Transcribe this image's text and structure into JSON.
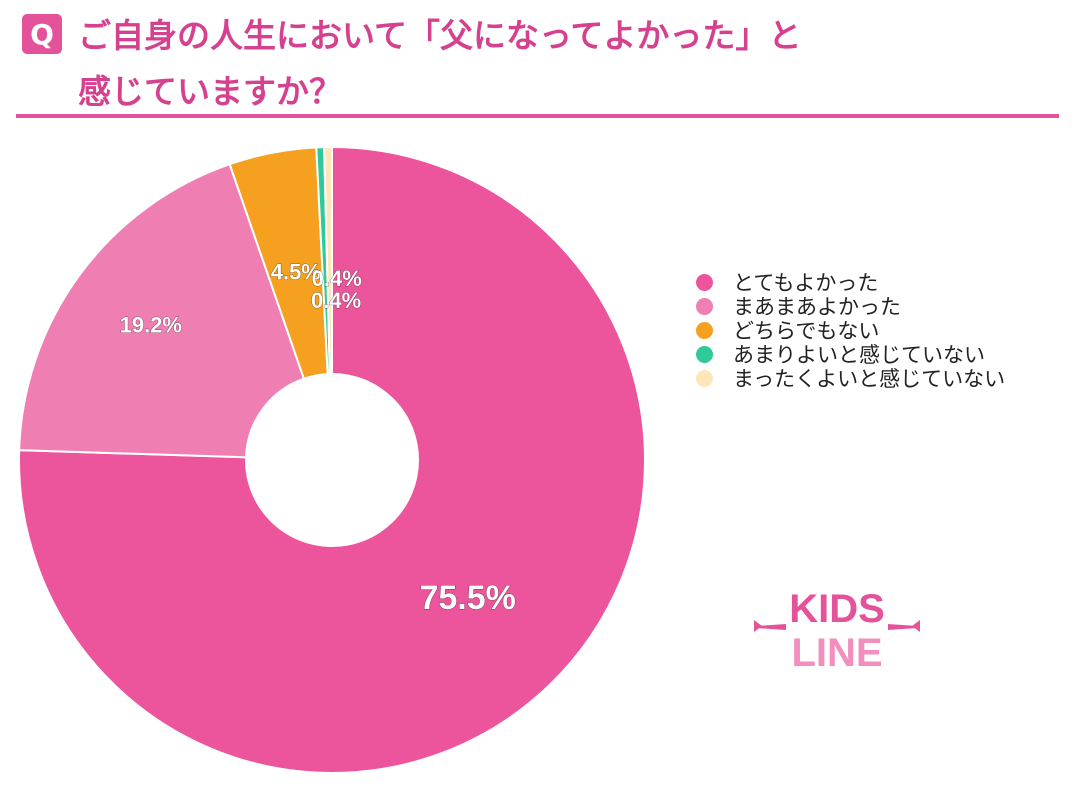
{
  "question": {
    "badge": "Q",
    "line1": "ご自身の人生において「父になってよかった」と",
    "line2": "感じていますか？"
  },
  "chart_data": {
    "type": "pie",
    "variant": "donut",
    "categories": [
      "とてもよかった",
      "まあまあよかった",
      "どちらでもない",
      "あまりよいと感じていない",
      "まったくよいと感じていない"
    ],
    "values": [
      75.5,
      19.2,
      4.5,
      0.4,
      0.4
    ],
    "labels": [
      "75.5%",
      "19.2%",
      "4.5%",
      "0.4%",
      "0.4%"
    ],
    "colors": [
      "#ec559c",
      "#ef7eb2",
      "#f5a01e",
      "#2fc99a",
      "#fde6b8"
    ],
    "legend_position": "right",
    "start_angle": "top, clockwise"
  },
  "logo": {
    "line1": "KIDS",
    "line2": "LINE",
    "colors": [
      "#e4529a",
      "#f28fbe"
    ]
  }
}
